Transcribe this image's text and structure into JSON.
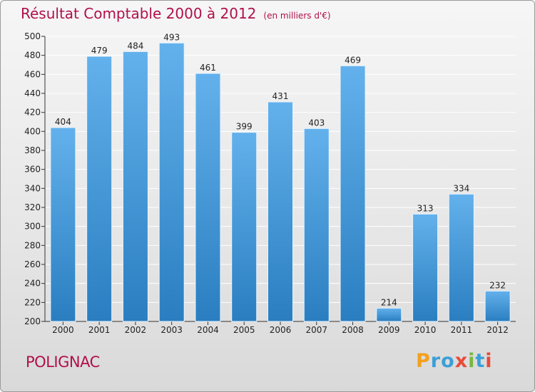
{
  "title": "Résultat Comptable 2000 à 2012",
  "subtitle": "(en milliers d'€)",
  "footer_label": "POLIGNAC",
  "brand": {
    "letters": [
      "P",
      "r",
      "o",
      "x",
      "i",
      "t",
      "i"
    ],
    "colors": [
      "#f2a01e",
      "#3aa0d8",
      "#3aa0d8",
      "#e84a3a",
      "#7ab642",
      "#3aa0d8",
      "#e84a3a"
    ]
  },
  "colors": {
    "bar_light": "#63b1ec",
    "bar_dark": "#2a7ec0",
    "title": "#b0104a",
    "grid": "#ffffff"
  },
  "chart_data": {
    "type": "bar",
    "title": "Résultat Comptable 2000 à 2012",
    "subtitle": "(en milliers d'€)",
    "xlabel": "",
    "ylabel": "",
    "categories": [
      "2000",
      "2001",
      "2002",
      "2003",
      "2004",
      "2005",
      "2006",
      "2007",
      "2008",
      "2009",
      "2010",
      "2011",
      "2012"
    ],
    "values": [
      404,
      479,
      484,
      493,
      461,
      399,
      431,
      403,
      469,
      214,
      313,
      334,
      232
    ],
    "ylim": [
      200,
      500
    ],
    "yticks": [
      200,
      220,
      240,
      260,
      280,
      300,
      320,
      340,
      360,
      380,
      400,
      420,
      440,
      460,
      480,
      500
    ],
    "grid": true,
    "legend": "none"
  }
}
